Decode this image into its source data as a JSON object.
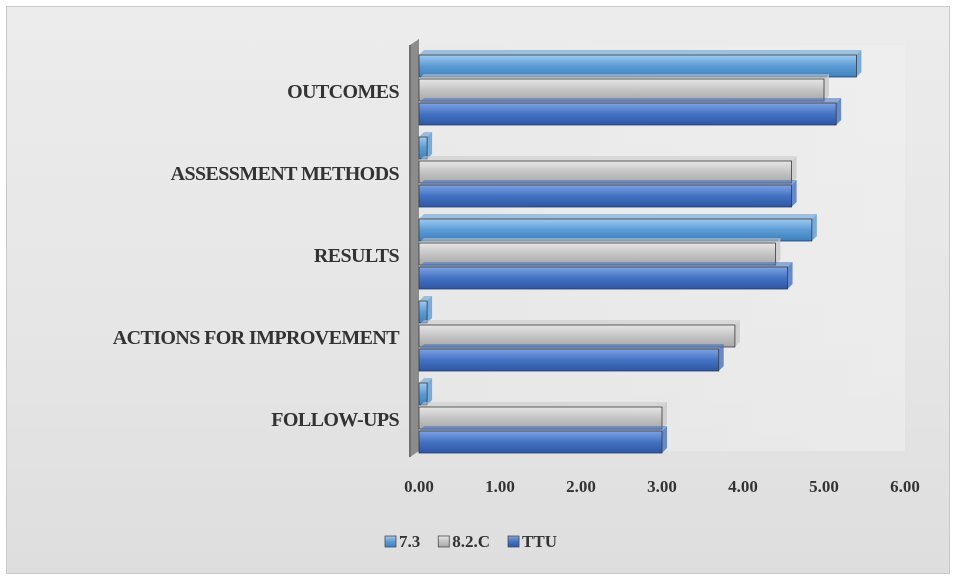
{
  "chart_data": {
    "type": "bar",
    "orientation": "horizontal",
    "categories": [
      "OUTCOMES",
      "ASSESSMENT METHODS",
      "RESULTS",
      "ACTIONS FOR IMPROVEMENT",
      "FOLLOW-UPS"
    ],
    "series": [
      {
        "name": "7.3",
        "color": "#5b9bd5",
        "values": [
          5.4,
          0.1,
          4.85,
          0.1,
          0.1
        ]
      },
      {
        "name": "8.2.C",
        "color": "#c8c8c8",
        "values": [
          5.0,
          4.6,
          4.4,
          3.9,
          3.0
        ]
      },
      {
        "name": "TTU",
        "color": "#4472c4",
        "values": [
          5.15,
          4.6,
          4.55,
          3.7,
          3.0
        ]
      }
    ],
    "xlim": [
      0,
      6
    ],
    "xticks": [
      "0.00",
      "1.00",
      "2.00",
      "3.00",
      "4.00",
      "5.00",
      "6.00"
    ],
    "grid": false,
    "legend_position": "bottom",
    "bar_style": "3d"
  }
}
